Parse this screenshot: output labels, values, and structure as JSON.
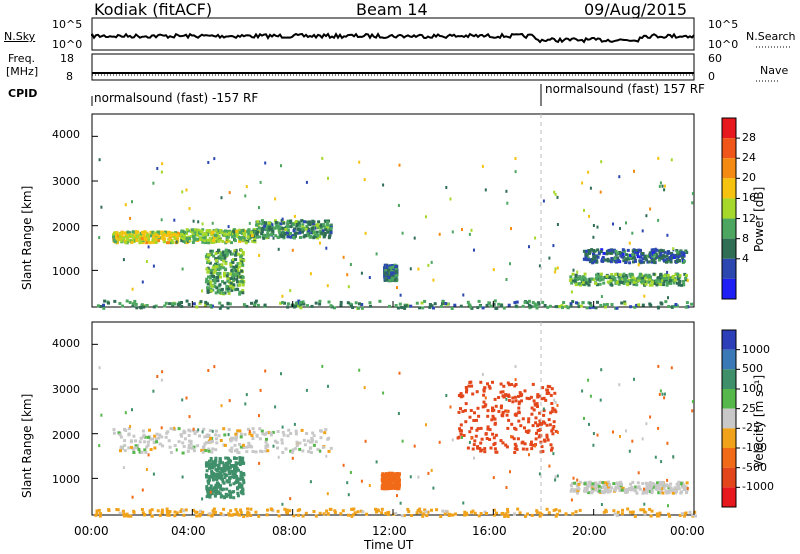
{
  "header": {
    "station": "Kodiak (fitACF)",
    "beam": "Beam 14",
    "date": "09/Aug/2015"
  },
  "strips": {
    "nsky": {
      "label": "N.Sky",
      "ticks_left": [
        "10^5",
        "10^0"
      ],
      "ticks_right": [
        "10^5",
        "10^0"
      ],
      "right_label": "N.Search"
    },
    "freq": {
      "label_line1": "Freq.",
      "label_line2": "[MHz]",
      "ticks_left": [
        "18",
        "8"
      ],
      "ticks_right": [
        "60",
        "0"
      ],
      "right_label": "Nave"
    },
    "cpid": {
      "label": "CPID",
      "segment1": "normalsound (fast) -157 RF",
      "segment2": "normalsound (fast) 157 RF"
    }
  },
  "panels": {
    "ylabel": "Slant Range [km]",
    "yticks": [
      "4000",
      "3000",
      "2000",
      "1000"
    ],
    "xticks": [
      "00:00",
      "04:00",
      "08:00",
      "12:00",
      "16:00",
      "20:00",
      "00:00"
    ],
    "xlabel": "Time UT"
  },
  "power_scale": {
    "label": "Power [dB]",
    "ticks": [
      "28",
      "24",
      "20",
      "16",
      "12",
      "8",
      "4"
    ],
    "colors": [
      "#e8191e",
      "#f0561a",
      "#f58a12",
      "#f5c20f",
      "#a6d82c",
      "#4ca65f",
      "#2f6e54",
      "#2c48b0",
      "#1f1ff5"
    ]
  },
  "velocity_scale": {
    "label": "Velocity [m s⁻¹]",
    "ticks": [
      "1000",
      "500",
      "100",
      "25",
      "-25",
      "-100",
      "-500",
      "-1000"
    ],
    "colors": [
      "#2c3fb8",
      "#3a78b6",
      "#3f8f6a",
      "#56b84a",
      "#c8c8c8",
      "#f0a21a",
      "#f06a18",
      "#e2461a",
      "#e8191e"
    ]
  },
  "chart_data": {
    "type": "heatmap",
    "title": "Kodiak (fitACF) Beam 14 09/Aug/2015",
    "xlabel": "Time UT",
    "ylabel": "Slant Range [km]",
    "x_range": [
      "00:00",
      "24:00"
    ],
    "ylim": [
      180,
      4500
    ],
    "panels": [
      {
        "name": "Power",
        "unit": "dB",
        "colorbar_ticks": [
          28,
          24,
          20,
          16,
          12,
          8,
          4
        ],
        "features": [
          {
            "time_start": 0.8,
            "time_end": 3.5,
            "range_start": 1650,
            "range_end": 1900,
            "level": 18
          },
          {
            "time_start": 3.5,
            "time_end": 6.5,
            "range_start": 1650,
            "range_end": 1950,
            "level": 14
          },
          {
            "time_start": 6.5,
            "time_end": 9.5,
            "range_start": 1750,
            "range_end": 2150,
            "level": 10
          },
          {
            "time_start": 4.5,
            "time_end": 6.0,
            "range_start": 500,
            "range_end": 1500,
            "level": 12
          },
          {
            "time_start": 11.6,
            "time_end": 12.1,
            "range_start": 800,
            "range_end": 1150,
            "level": 8
          },
          {
            "time_start": 19.0,
            "time_end": 23.7,
            "range_start": 700,
            "range_end": 950,
            "level": 12
          },
          {
            "time_start": 19.5,
            "time_end": 23.7,
            "range_start": 1200,
            "range_end": 1500,
            "level": 6
          },
          {
            "time_start": 0.0,
            "time_end": 24.0,
            "range_start": 180,
            "range_end": 350,
            "level": 10
          }
        ]
      },
      {
        "name": "Velocity",
        "unit": "m s-1",
        "colorbar_ticks": [
          1000,
          500,
          100,
          25,
          -25,
          -100,
          -500,
          -1000
        ],
        "features": [
          {
            "time_start": 0.8,
            "time_end": 9.5,
            "range_start": 1600,
            "range_end": 2150,
            "velocity": 0
          },
          {
            "time_start": 4.5,
            "time_end": 6.0,
            "range_start": 600,
            "range_end": 1500,
            "velocity": 150
          },
          {
            "time_start": 11.5,
            "time_end": 12.2,
            "range_start": 800,
            "range_end": 1150,
            "velocity": -300
          },
          {
            "time_start": 19.0,
            "time_end": 23.7,
            "range_start": 700,
            "range_end": 950,
            "velocity": 0
          },
          {
            "time_start": 14.5,
            "time_end": 18.5,
            "range_start": 1600,
            "range_end": 3200,
            "velocity": -600
          },
          {
            "time_start": 0.0,
            "time_end": 24.0,
            "range_start": 180,
            "range_end": 350,
            "velocity": -50
          }
        ]
      }
    ]
  }
}
